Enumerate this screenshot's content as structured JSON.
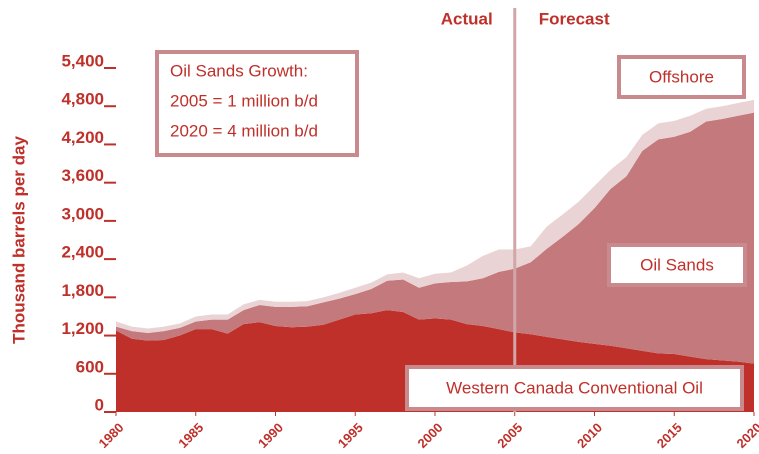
{
  "chart_data": {
    "type": "stacked_area",
    "y_label": "Thousand barrels per day",
    "x": [
      1980,
      1981,
      1982,
      1983,
      1984,
      1985,
      1986,
      1987,
      1988,
      1989,
      1990,
      1991,
      1992,
      1993,
      1994,
      1995,
      1996,
      1997,
      1998,
      1999,
      2000,
      2001,
      2002,
      2003,
      2004,
      2005,
      2006,
      2007,
      2008,
      2009,
      2010,
      2011,
      2012,
      2013,
      2014,
      2015,
      2016,
      2017,
      2018,
      2019,
      2020
    ],
    "xlim": [
      1980,
      2020
    ],
    "xticks": [
      1980,
      1985,
      1990,
      1995,
      2000,
      2005,
      2010,
      2015,
      2020
    ],
    "ylim": [
      0,
      5400
    ],
    "yticks": [
      0,
      600,
      {
        "value": 1200,
        "label": "1,200"
      },
      {
        "value": 1800,
        "label": "1,800"
      },
      {
        "value": 2400,
        "label": "2,400"
      },
      {
        "value": 3000,
        "label": "3,000"
      },
      {
        "value": 3600,
        "label": "3,600"
      },
      {
        "value": 4200,
        "label": "4,200"
      },
      {
        "value": 4800,
        "label": "4,800"
      },
      {
        "value": 5400,
        "label": "5,400"
      }
    ],
    "series": [
      {
        "name": "Western Canada Conventional Oil",
        "color": "#c0302a",
        "values": [
          1280,
          1150,
          1120,
          1130,
          1200,
          1300,
          1300,
          1230,
          1380,
          1410,
          1350,
          1330,
          1340,
          1370,
          1450,
          1530,
          1550,
          1600,
          1570,
          1450,
          1470,
          1450,
          1380,
          1350,
          1300,
          1250,
          1220,
          1180,
          1140,
          1100,
          1070,
          1040,
          1000,
          960,
          920,
          910,
          870,
          830,
          810,
          790,
          760
        ]
      },
      {
        "name": "Oil Sands",
        "color": "#c47a7c",
        "values": [
          60,
          120,
          120,
          140,
          120,
          120,
          150,
          220,
          220,
          270,
          300,
          320,
          320,
          350,
          330,
          320,
          380,
          460,
          510,
          500,
          550,
          590,
          670,
          750,
          900,
          1000,
          1130,
          1380,
          1610,
          1850,
          2130,
          2460,
          2700,
          3140,
          3360,
          3410,
          3530,
          3730,
          3790,
          3860,
          3940
        ]
      },
      {
        "name": "Offshore",
        "color": "#ead3d5",
        "values": [
          80,
          70,
          70,
          70,
          70,
          80,
          80,
          80,
          90,
          80,
          80,
          80,
          80,
          80,
          90,
          100,
          100,
          100,
          110,
          150,
          150,
          150,
          250,
          350,
          350,
          300,
          250,
          350,
          350,
          350,
          350,
          300,
          300,
          250,
          250,
          250,
          250,
          200,
          200,
          200,
          200
        ]
      }
    ],
    "divider": {
      "x": 2005,
      "left_label": "Actual",
      "right_label": "Forecast"
    },
    "annotation": [
      "Oil Sands Growth:",
      "2005 = 1 million b/d",
      "2020 = 4 million b/d"
    ]
  }
}
